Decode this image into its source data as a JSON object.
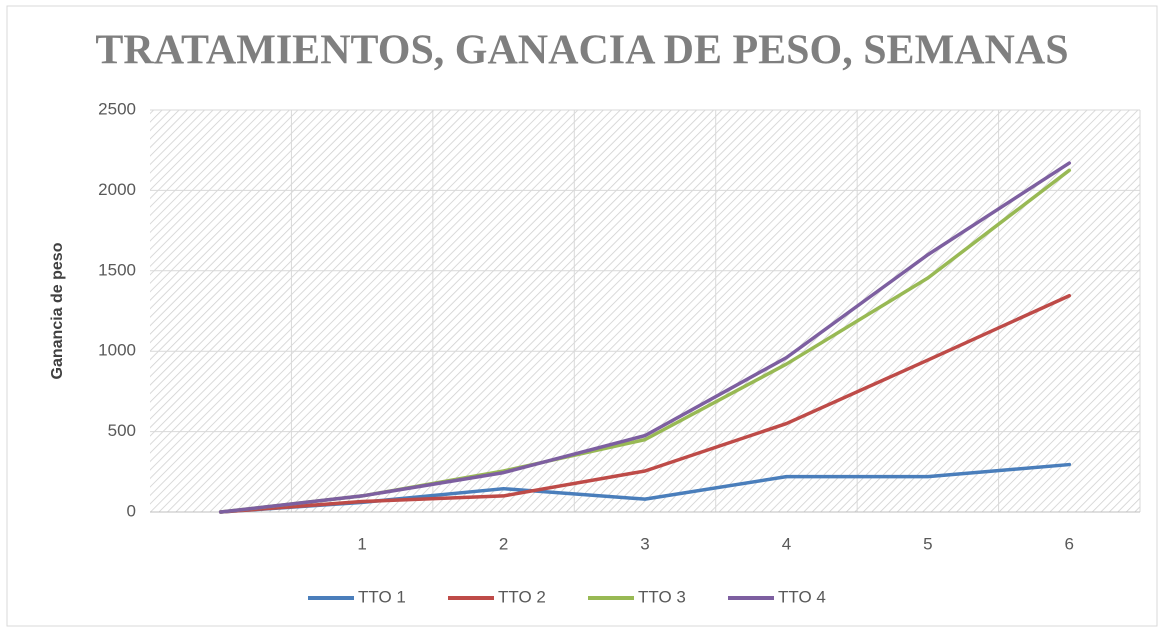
{
  "chart_data": {
    "type": "line",
    "title": "TRATAMIENTOS, GANACIA DE PESO, SEMANAS",
    "y_label": "Ganancia de peso",
    "categories": [
      null,
      "1",
      "2",
      "3",
      "4",
      "5",
      "6"
    ],
    "series": [
      {
        "name": "TTO 1",
        "color": "#4a7ebb",
        "values": [
          0,
          60,
          145,
          80,
          220,
          220,
          295
        ]
      },
      {
        "name": "TTO 2",
        "color": "#be4b48",
        "values": [
          0,
          65,
          100,
          255,
          550,
          945,
          1345
        ]
      },
      {
        "name": "TTO 3",
        "color": "#98b954",
        "values": [
          0,
          100,
          255,
          450,
          920,
          1455,
          2125
        ]
      },
      {
        "name": "TTO 4",
        "color": "#7d5fa0",
        "values": [
          0,
          100,
          245,
          475,
          960,
          1600,
          2170
        ]
      }
    ],
    "ylim": [
      0,
      2500
    ],
    "yticks": [
      0,
      500,
      1000,
      1500,
      2000,
      2500
    ],
    "grid": true,
    "legend": "bottom"
  }
}
